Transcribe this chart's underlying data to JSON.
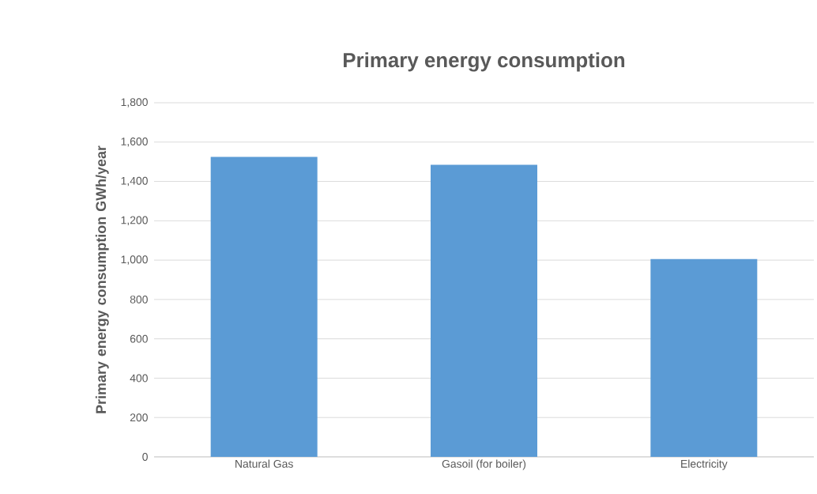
{
  "chart_data": {
    "type": "bar",
    "title": "Primary energy consumption",
    "ylabel": "Primary energy consumption GWh/year",
    "categories": [
      "Natural Gas",
      "Gasoil (for boiler)",
      "Electricity"
    ],
    "values": [
      1525,
      1485,
      1005
    ],
    "color": "#5b9bd5",
    "ylim": [
      0,
      1800
    ],
    "yticks": [
      0,
      200,
      400,
      600,
      800,
      {
        "value": 1000,
        "label": "1,000"
      },
      {
        "value": 1200,
        "label": "1,200"
      },
      {
        "value": 1400,
        "label": "1,400"
      },
      {
        "value": 1600,
        "label": "1,600"
      },
      {
        "value": 1800,
        "label": "1,800"
      }
    ],
    "grid": "y"
  }
}
